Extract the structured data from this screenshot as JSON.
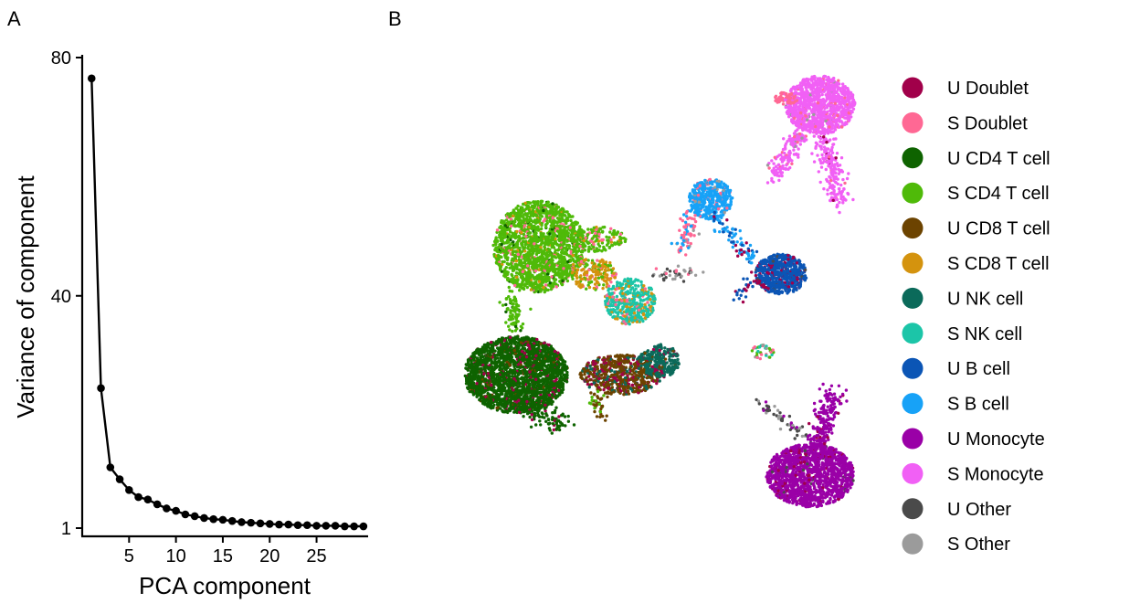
{
  "panels": {
    "a_label": "A",
    "b_label": "B"
  },
  "chart_data": [
    {
      "type": "line",
      "panel": "A",
      "xlabel": "PCA component",
      "ylabel": "Variance of component",
      "xlim": [
        0,
        30.5
      ],
      "ylim": [
        1,
        80
      ],
      "xticks": [
        5,
        10,
        15,
        20,
        25
      ],
      "yticks": [
        1,
        40,
        80
      ],
      "grid": false,
      "x": [
        1,
        2,
        3,
        4,
        5,
        6,
        7,
        8,
        9,
        10,
        11,
        12,
        13,
        14,
        15,
        16,
        17,
        18,
        19,
        20,
        21,
        22,
        23,
        24,
        25,
        26,
        27,
        28,
        29,
        30
      ],
      "y": [
        76.5,
        24.5,
        11.2,
        9.2,
        7.4,
        6.2,
        5.8,
        5.0,
        4.3,
        3.9,
        3.3,
        3.0,
        2.7,
        2.5,
        2.4,
        2.2,
        2.0,
        1.9,
        1.8,
        1.7,
        1.6,
        1.6,
        1.5,
        1.5,
        1.4,
        1.4,
        1.4,
        1.3,
        1.3,
        1.3
      ]
    },
    {
      "type": "scatter",
      "panel": "B",
      "legend_position": "right",
      "series": [
        {
          "name": "U Doublet",
          "color": "#a1004a"
        },
        {
          "name": "S Doublet",
          "color": "#ff6894"
        },
        {
          "name": "U CD4 T cell",
          "color": "#0e6300"
        },
        {
          "name": "S CD4 T cell",
          "color": "#4fba09"
        },
        {
          "name": "U CD8 T cell",
          "color": "#6c4300"
        },
        {
          "name": "S CD8 T cell",
          "color": "#d4930e"
        },
        {
          "name": "U NK cell",
          "color": "#0b6a5a"
        },
        {
          "name": "S NK cell",
          "color": "#1cc5a8"
        },
        {
          "name": "U B cell",
          "color": "#0b55b5"
        },
        {
          "name": "S B cell",
          "color": "#17a2f7"
        },
        {
          "name": "U Monocyte",
          "color": "#9a00a7"
        },
        {
          "name": "S Monocyte",
          "color": "#f160f5"
        },
        {
          "name": "U Other",
          "color": "#4a4a4a"
        },
        {
          "name": "S Other",
          "color": "#9b9b9b"
        }
      ]
    }
  ]
}
